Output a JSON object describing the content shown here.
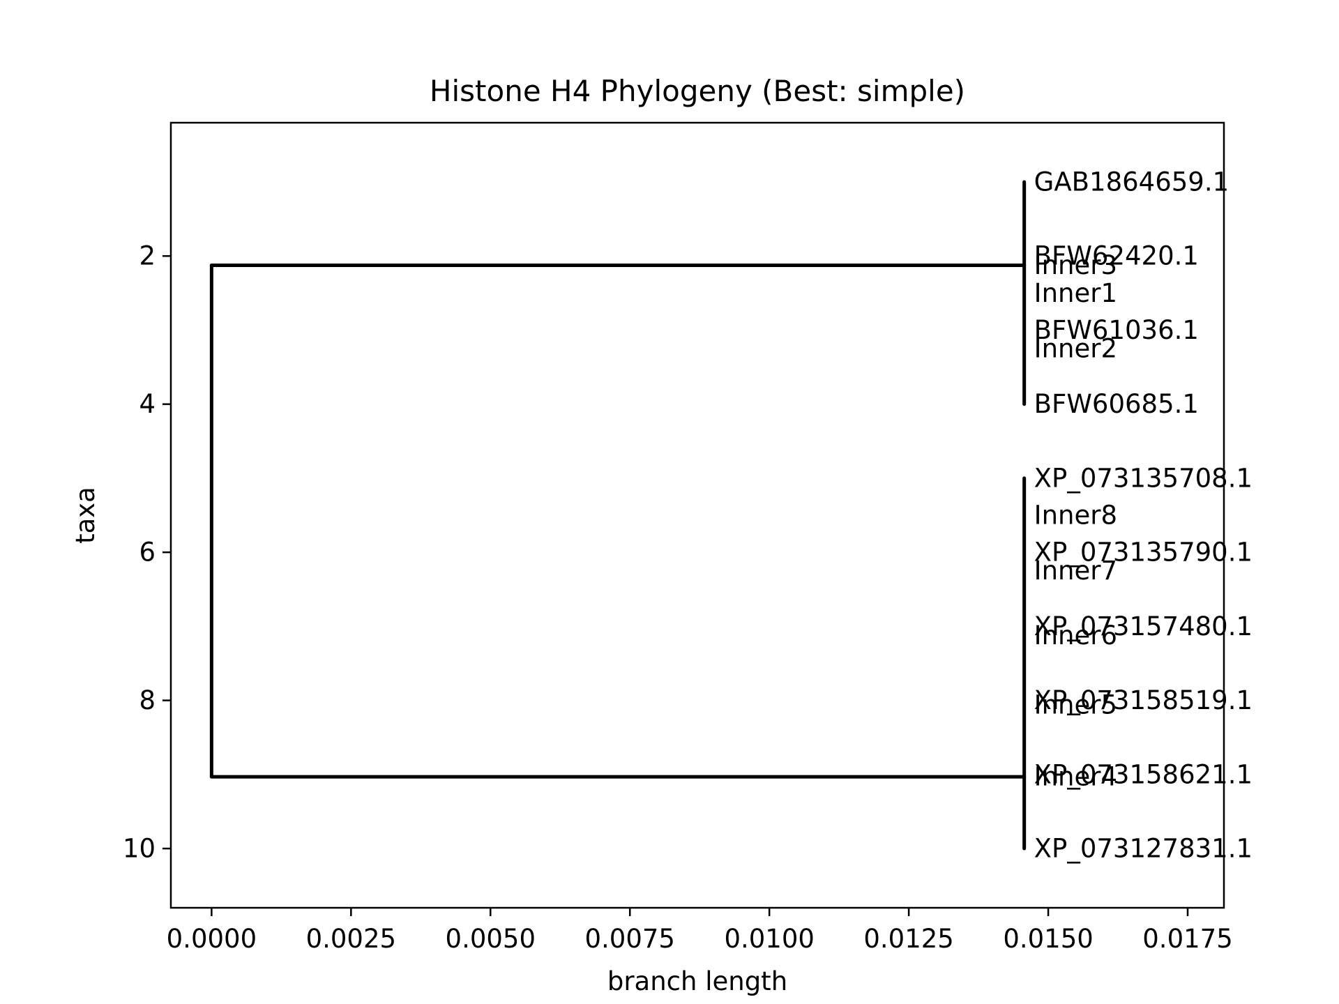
{
  "chart_data": {
    "type": "dendrogram",
    "title": "Histone H4 Phylogeny (Best: simple)",
    "xlabel": "branch length",
    "ylabel": "taxa",
    "xlim": [
      -0.00073,
      0.01815
    ],
    "ylim": [
      10.8,
      0.2
    ],
    "x_ticks": [
      0.0,
      0.0025,
      0.005,
      0.0075,
      0.01,
      0.0125,
      0.015,
      0.0175
    ],
    "x_tick_labels": [
      "0.0000",
      "0.0025",
      "0.0050",
      "0.0075",
      "0.0100",
      "0.0125",
      "0.0150",
      "0.0175"
    ],
    "y_ticks": [
      2,
      4,
      6,
      8,
      10
    ],
    "y_tick_labels": [
      "2",
      "4",
      "6",
      "8",
      "10"
    ],
    "grid": false,
    "line_color": "#000000",
    "nodes": [
      {
        "label": "GAB1864659.1",
        "x": 0.01457,
        "y": 1
      },
      {
        "label": "BFW62420.1",
        "x": 0.01457,
        "y": 2
      },
      {
        "label": "Inner3",
        "x": 0.01457,
        "y": 2.125
      },
      {
        "label": "Inner1",
        "x": 0.01457,
        "y": 2.5
      },
      {
        "label": "BFW61036.1",
        "x": 0.01457,
        "y": 3
      },
      {
        "label": "Inner2",
        "x": 0.01457,
        "y": 3.25
      },
      {
        "label": "BFW60685.1",
        "x": 0.01457,
        "y": 4
      },
      {
        "label": "XP_073135708.1",
        "x": 0.01457,
        "y": 5
      },
      {
        "label": "Inner8",
        "x": 0.01457,
        "y": 5.5
      },
      {
        "label": "XP_073135790.1",
        "x": 0.01457,
        "y": 6
      },
      {
        "label": "Inner7",
        "x": 0.01457,
        "y": 6.25
      },
      {
        "label": "XP_073157480.1",
        "x": 0.01457,
        "y": 7
      },
      {
        "label": "Inner6",
        "x": 0.01457,
        "y": 7.125
      },
      {
        "label": "XP_073158519.1",
        "x": 0.01457,
        "y": 8
      },
      {
        "label": "Inner5",
        "x": 0.01457,
        "y": 8.0625
      },
      {
        "label": "XP_073158621.1",
        "x": 0.01457,
        "y": 9
      },
      {
        "label": "Inner4",
        "x": 0.01457,
        "y": 9.03125
      },
      {
        "label": "XP_073127831.1",
        "x": 0.01457,
        "y": 10
      }
    ],
    "branches": [
      {
        "x1": 0.0,
        "y1": 2.125,
        "x2": 0.0,
        "y2": 9.03125
      },
      {
        "x1": 0.0,
        "y1": 2.125,
        "x2": 0.01457,
        "y2": 2.125
      },
      {
        "x1": 0.0,
        "y1": 9.03125,
        "x2": 0.01457,
        "y2": 9.03125
      },
      {
        "x1": 0.01457,
        "y1": 1,
        "x2": 0.01457,
        "y2": 4
      },
      {
        "x1": 0.01457,
        "y1": 5,
        "x2": 0.01457,
        "y2": 10
      }
    ]
  }
}
